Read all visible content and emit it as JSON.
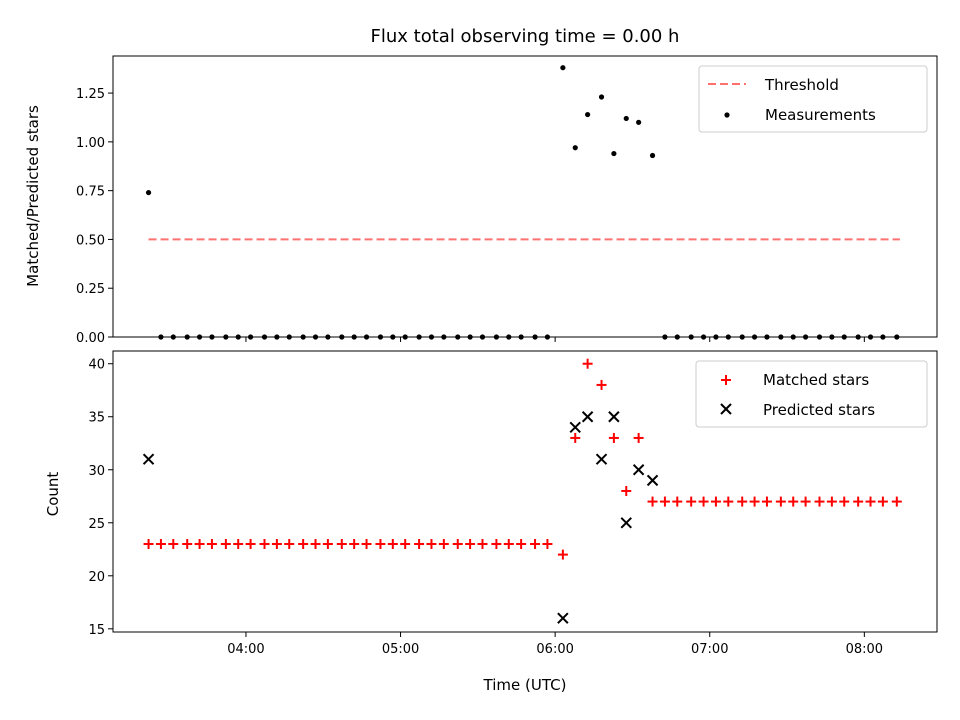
{
  "chart_data": [
    {
      "type": "scatter",
      "title": "Flux total observing time = 0.00 h",
      "ylabel": "Matched/Predicted stars",
      "xlim": [
        3.14,
        8.47
      ],
      "ylim": [
        0.0,
        1.44
      ],
      "yticks": [
        0.0,
        0.25,
        0.5,
        0.75,
        1.0,
        1.25
      ],
      "ytick_labels": [
        "0.00",
        "0.25",
        "0.50",
        "0.75",
        "1.00",
        "1.25"
      ],
      "legend_placement": "top-right",
      "series": [
        {
          "name": "Threshold",
          "kind": "dashed-line",
          "color": "#ff7070",
          "x": [
            3.37,
            8.23
          ],
          "y": [
            0.5,
            0.5
          ]
        },
        {
          "name": "Measurements",
          "kind": "dots",
          "color": "#000000",
          "x": [
            3.37,
            3.45,
            3.53,
            3.62,
            3.7,
            3.78,
            3.87,
            3.95,
            4.03,
            4.12,
            4.2,
            4.28,
            4.37,
            4.45,
            4.53,
            4.62,
            4.7,
            4.78,
            4.87,
            4.95,
            5.03,
            5.12,
            5.2,
            5.28,
            5.37,
            5.45,
            5.53,
            5.62,
            5.7,
            5.78,
            5.87,
            5.95,
            6.05,
            6.13,
            6.21,
            6.3,
            6.38,
            6.46,
            6.54,
            6.63,
            6.71,
            6.79,
            6.88,
            6.96,
            7.04,
            7.12,
            7.21,
            7.29,
            7.37,
            7.46,
            7.54,
            7.62,
            7.71,
            7.79,
            7.87,
            7.96,
            8.04,
            8.12,
            8.21
          ],
          "y": [
            0.74,
            0,
            0,
            0,
            0,
            0,
            0,
            0,
            0,
            0,
            0,
            0,
            0,
            0,
            0,
            0,
            0,
            0,
            0,
            0,
            0,
            0,
            0,
            0,
            0,
            0,
            0,
            0,
            0,
            0,
            0,
            0,
            1.38,
            0.97,
            1.14,
            1.23,
            0.94,
            1.12,
            1.1,
            0.93,
            0,
            0,
            0,
            0,
            0,
            0,
            0,
            0,
            0,
            0,
            0,
            0,
            0,
            0,
            0,
            0,
            0,
            0,
            0
          ]
        }
      ]
    },
    {
      "type": "scatter",
      "xlabel": "Time (UTC)",
      "ylabel": "Count",
      "xlim": [
        3.14,
        8.47
      ],
      "ylim": [
        14.7,
        41.2
      ],
      "xticks": [
        4,
        5,
        6,
        7,
        8
      ],
      "xtick_labels": [
        "04:00",
        "05:00",
        "06:00",
        "07:00",
        "08:00"
      ],
      "yticks": [
        15,
        20,
        25,
        30,
        35,
        40
      ],
      "ytick_labels": [
        "15",
        "20",
        "25",
        "30",
        "35",
        "40"
      ],
      "legend_placement": "top-right",
      "series": [
        {
          "name": "Matched stars",
          "marker": "plus",
          "color": "#ff0000",
          "x": [
            3.37,
            3.45,
            3.53,
            3.62,
            3.7,
            3.78,
            3.87,
            3.95,
            4.03,
            4.12,
            4.2,
            4.28,
            4.37,
            4.45,
            4.53,
            4.62,
            4.7,
            4.78,
            4.87,
            4.95,
            5.03,
            5.12,
            5.2,
            5.28,
            5.37,
            5.45,
            5.53,
            5.62,
            5.7,
            5.78,
            5.87,
            5.95,
            6.05,
            6.13,
            6.21,
            6.3,
            6.38,
            6.46,
            6.54,
            6.63,
            6.71,
            6.79,
            6.88,
            6.96,
            7.04,
            7.12,
            7.21,
            7.29,
            7.37,
            7.46,
            7.54,
            7.62,
            7.71,
            7.79,
            7.87,
            7.96,
            8.04,
            8.12,
            8.21
          ],
          "y": [
            23,
            23,
            23,
            23,
            23,
            23,
            23,
            23,
            23,
            23,
            23,
            23,
            23,
            23,
            23,
            23,
            23,
            23,
            23,
            23,
            23,
            23,
            23,
            23,
            23,
            23,
            23,
            23,
            23,
            23,
            23,
            23,
            22,
            33,
            40,
            38,
            33,
            28,
            33,
            27,
            27,
            27,
            27,
            27,
            27,
            27,
            27,
            27,
            27,
            27,
            27,
            27,
            27,
            27,
            27,
            27,
            27,
            27,
            27
          ]
        },
        {
          "name": "Predicted stars",
          "marker": "x",
          "color": "#000000",
          "x": [
            3.37,
            6.05,
            6.13,
            6.21,
            6.3,
            6.38,
            6.46,
            6.54,
            6.63
          ],
          "y": [
            31,
            16,
            34,
            35,
            31,
            35,
            25,
            30,
            29
          ]
        }
      ]
    }
  ]
}
